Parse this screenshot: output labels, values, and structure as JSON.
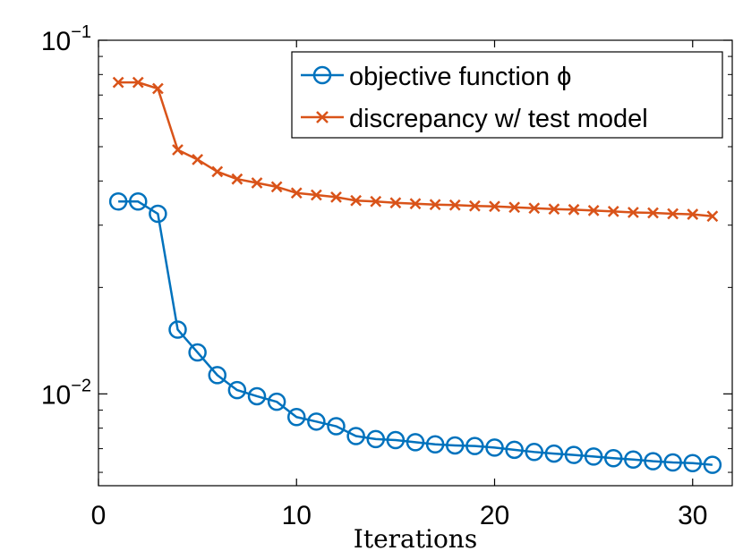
{
  "chart_data": {
    "type": "line",
    "title": "",
    "xlabel": "Iterations",
    "ylabel": "",
    "yscale": "log",
    "xlim": [
      0,
      32
    ],
    "ylim": [
      0.0055,
      0.1
    ],
    "grid": false,
    "legend_position": "top-right",
    "x_ticks": [
      0,
      10,
      20,
      30
    ],
    "y_ticks": [
      {
        "value": 0.1,
        "base": "10",
        "exponent": "−1"
      },
      {
        "value": 0.01,
        "base": "10",
        "exponent": "−2"
      }
    ],
    "x": [
      1,
      2,
      3,
      4,
      5,
      6,
      7,
      8,
      9,
      10,
      11,
      12,
      13,
      14,
      15,
      16,
      17,
      18,
      19,
      20,
      21,
      22,
      23,
      24,
      25,
      26,
      27,
      28,
      29,
      30,
      31
    ],
    "series": [
      {
        "name": "objective function ϕ",
        "marker": "circle",
        "color": "#0072BD",
        "values": [
          0.035,
          0.035,
          0.0323,
          0.0152,
          0.0131,
          0.0113,
          0.01025,
          0.00985,
          0.0095,
          0.0086,
          0.00835,
          0.0081,
          0.0076,
          0.00745,
          0.0074,
          0.0073,
          0.0072,
          0.00715,
          0.00712,
          0.00705,
          0.00695,
          0.00685,
          0.00678,
          0.00672,
          0.00665,
          0.00658,
          0.00652,
          0.00645,
          0.0064,
          0.00637,
          0.0063
        ]
      },
      {
        "name": "discrepancy w/ test model",
        "marker": "x",
        "color": "#D95319",
        "values": [
          0.076,
          0.076,
          0.073,
          0.049,
          0.046,
          0.0425,
          0.0405,
          0.0395,
          0.0385,
          0.037,
          0.0365,
          0.036,
          0.0352,
          0.035,
          0.0347,
          0.0345,
          0.0343,
          0.0342,
          0.034,
          0.0339,
          0.0337,
          0.0335,
          0.0333,
          0.0332,
          0.033,
          0.0328,
          0.0326,
          0.0325,
          0.0323,
          0.0322,
          0.0318
        ]
      }
    ]
  }
}
